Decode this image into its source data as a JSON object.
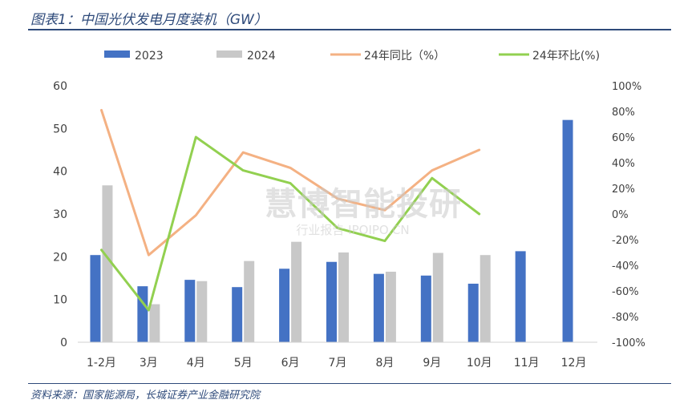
{
  "figure": {
    "title": "图表1：中国光伏发电月度装机（GW）",
    "source": "资料来源：国家能源局，长城证券产业金融研究院",
    "watermark_main": "慧博智能投研",
    "watermark_sub": "行业报告 IPOIPO.CN"
  },
  "chart_data": {
    "type": "bar",
    "categories": [
      "1-2月",
      "3月",
      "4月",
      "5月",
      "6月",
      "7月",
      "8月",
      "9月",
      "10月",
      "11月",
      "12月"
    ],
    "series": [
      {
        "name": "2023",
        "kind": "bar",
        "axis": "left",
        "color": "#4472c4",
        "values": [
          20.4,
          13.1,
          14.6,
          12.9,
          17.2,
          18.8,
          16.0,
          15.6,
          13.7,
          21.3,
          52.0
        ]
      },
      {
        "name": "2024",
        "kind": "bar",
        "axis": "left",
        "color": "#c8c8c8",
        "values": [
          36.7,
          8.9,
          14.3,
          19.0,
          23.5,
          21.0,
          16.5,
          20.9,
          20.4,
          null,
          null
        ]
      },
      {
        "name": "24年同比（%）",
        "kind": "line",
        "axis": "right",
        "color": "#f4b183",
        "values": [
          81,
          -32,
          -1,
          48,
          36,
          12,
          3,
          34,
          50,
          null,
          null
        ]
      },
      {
        "name": "24年环比(%)",
        "kind": "line",
        "axis": "right",
        "color": "#92d050",
        "values": [
          -28,
          -75,
          60,
          34,
          24,
          -11,
          -21,
          28,
          0,
          null,
          null
        ]
      }
    ],
    "y_left": {
      "range": [
        0,
        60
      ],
      "ticks": [
        0,
        10,
        20,
        30,
        40,
        50,
        60
      ]
    },
    "y_right": {
      "range": [
        -100,
        100
      ],
      "ticks": [
        -100,
        -80,
        -60,
        -40,
        -20,
        0,
        20,
        40,
        60,
        80,
        100
      ],
      "tick_labels": [
        "-100%",
        "-80%",
        "-60%",
        "-40%",
        "-20%",
        "0%",
        "20%",
        "40%",
        "60%",
        "80%",
        "100%"
      ]
    },
    "legend_position": "top",
    "grid": false
  }
}
